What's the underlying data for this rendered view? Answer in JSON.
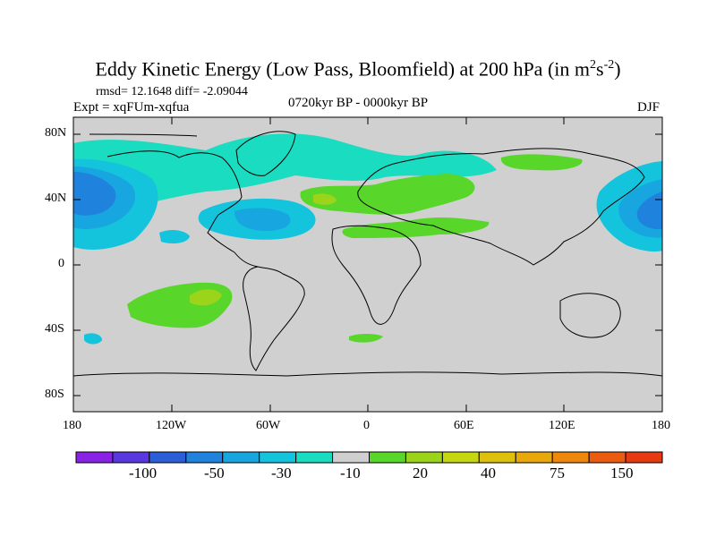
{
  "title": {
    "main": "Eddy Kinetic Energy (Low Pass, Bloomfield) at 200 hPa (in m",
    "sup1": "2",
    "mid": "s",
    "sup2": "-2",
    "end": ")"
  },
  "stats": "rmsd= 12.1648 diff= -2.09044",
  "experiment": "Expt = xqFUm-xqfua",
  "period": "0720kyr BP - 0000kyr BP",
  "season": "DJF",
  "axes": {
    "y_ticks": [
      "80N",
      "40N",
      "0",
      "40S",
      "80S"
    ],
    "x_ticks": [
      "180",
      "120W",
      "60W",
      "0",
      "60E",
      "120E",
      "180"
    ]
  },
  "colorbar": {
    "labels": [
      "-100",
      "-50",
      "-30",
      "-10",
      "20",
      "40",
      "75",
      "150"
    ],
    "colors": [
      "#8a22e6",
      "#5a38e0",
      "#2a5fd8",
      "#1f82dc",
      "#18a6e0",
      "#14c4dc",
      "#19dcc0",
      "#cfcfcf",
      "#58d72a",
      "#9cd41c",
      "#c6d610",
      "#dcc00c",
      "#e8a80c",
      "#ee880c",
      "#ec5c10",
      "#e63a12"
    ]
  },
  "colors": {
    "land_sea_background": "#d0d0d0",
    "blue_strong": "#1f82dc",
    "blue_mid": "#18a6e0",
    "cyan": "#14c4dc",
    "teal": "#19dcc0",
    "green": "#58d72a",
    "yellow_green": "#9cd41c"
  }
}
